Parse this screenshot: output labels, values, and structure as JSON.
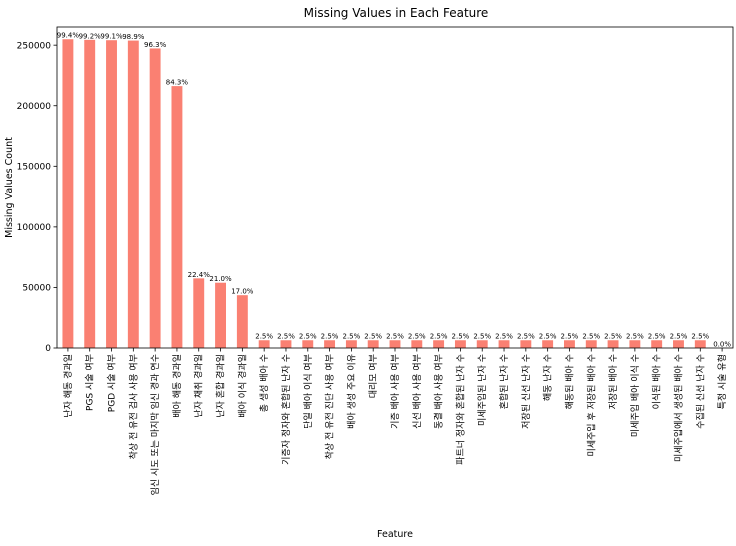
{
  "chart_data": {
    "type": "bar",
    "title": "Missing Values in Each Feature",
    "xlabel": "Feature",
    "ylabel": "Missing Values Count",
    "ylim": [
      0,
      265000
    ],
    "yticks": [
      0,
      50000,
      100000,
      150000,
      200000,
      250000
    ],
    "ytick_labels": [
      "0",
      "50000",
      "100000",
      "150000",
      "200000",
      "250000"
    ],
    "bar_color": "#fa8072",
    "grid": false,
    "categories": [
      "난자 해동 경과일",
      "PGS 시술 여부",
      "PGD 시술 여부",
      "착상 전 유전 검사 사용 여부",
      "임신 시도 또는 마지막 임신 경과 연수",
      "배아 해동 경과일",
      "난자 채취 경과일",
      "난자 혼합 경과일",
      "배아 이식 경과일",
      "총 생성 배아 수",
      "기증자 정자와 혼합된 난자 수",
      "단일 배아 이식 여부",
      "착상 전 유전 진단 사용 여부",
      "배아 생성 주요 이유",
      "대리모 여부",
      "기증 배아 사용 여부",
      "신선 배아 사용 여부",
      "동결 배아 사용 여부",
      "파트너 정자와 혼합된 난자 수",
      "미세주입된 난자 수",
      "혼합된 난자 수",
      "저장된 신선 난자 수",
      "해동 난자 수",
      "해동된 배아 수",
      "미세주입 후 저장된 배아 수",
      "저장된 배아 수",
      "미세주입 배아 이식 수",
      "이식된 배아 수",
      "미세주입에서 생성된 배아 수",
      "수집된 신선 난자 수",
      "특정 시술 유형"
    ],
    "values": [
      254900,
      254400,
      254100,
      253800,
      247300,
      216200,
      57500,
      53900,
      43600,
      6400,
      6400,
      6400,
      6400,
      6400,
      6400,
      6400,
      6400,
      6400,
      6400,
      6400,
      6400,
      6400,
      6400,
      6400,
      6400,
      6400,
      6400,
      6400,
      6400,
      6400,
      2
    ],
    "data_labels": [
      "99.4%",
      "99.2%",
      "99.1%",
      "98.9%",
      "96.3%",
      "84.3%",
      "22.4%",
      "21.0%",
      "17.0%",
      "2.5%",
      "2.5%",
      "2.5%",
      "2.5%",
      "2.5%",
      "2.5%",
      "2.5%",
      "2.5%",
      "2.5%",
      "2.5%",
      "2.5%",
      "2.5%",
      "2.5%",
      "2.5%",
      "2.5%",
      "2.5%",
      "2.5%",
      "2.5%",
      "2.5%",
      "2.5%",
      "2.5%",
      "0.0%"
    ]
  }
}
